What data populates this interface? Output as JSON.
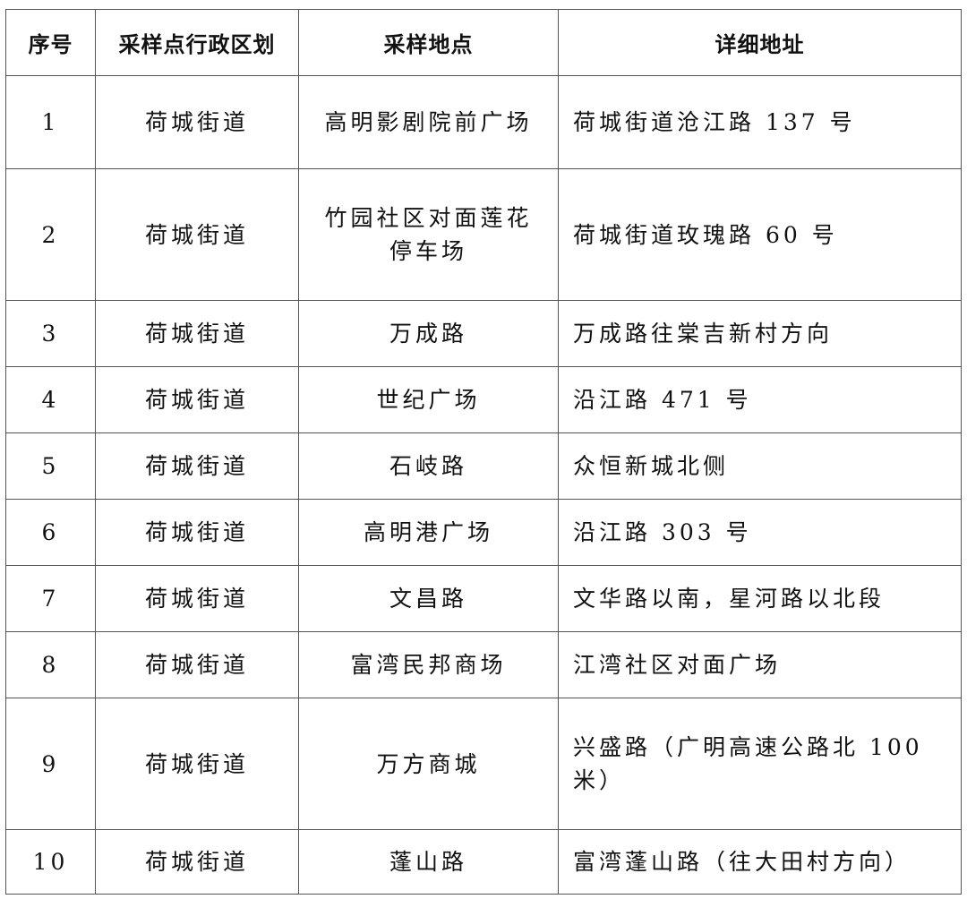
{
  "headers": [
    "序号",
    "采样点行政区划",
    "采样地点",
    "详细地址"
  ],
  "rows": [
    {
      "no": "1",
      "district": "荷城街道",
      "site": "高明影剧院前广场",
      "address": "荷城街道沧江路 137 号"
    },
    {
      "no": "2",
      "district": "荷城街道",
      "site": "竹园社区对面莲花停车场",
      "address": "荷城街道玫瑰路 60 号"
    },
    {
      "no": "3",
      "district": "荷城街道",
      "site": "万成路",
      "address": "万成路往棠吉新村方向"
    },
    {
      "no": "4",
      "district": "荷城街道",
      "site": "世纪广场",
      "address": "沿江路 471 号"
    },
    {
      "no": "5",
      "district": "荷城街道",
      "site": "石岐路",
      "address": "众恒新城北侧"
    },
    {
      "no": "6",
      "district": "荷城街道",
      "site": "高明港广场",
      "address": "沿江路 303 号"
    },
    {
      "no": "7",
      "district": "荷城街道",
      "site": "文昌路",
      "address": "文华路以南，星河路以北段"
    },
    {
      "no": "8",
      "district": "荷城街道",
      "site": "富湾民邦商场",
      "address": "江湾社区对面广场"
    },
    {
      "no": "9",
      "district": "荷城街道",
      "site": "万方商城",
      "address": "兴盛路（广明高速公路北 100 米）"
    },
    {
      "no": "10",
      "district": "荷城街道",
      "site": "蓬山路",
      "address": "富湾蓬山路（往大田村方向）"
    }
  ]
}
